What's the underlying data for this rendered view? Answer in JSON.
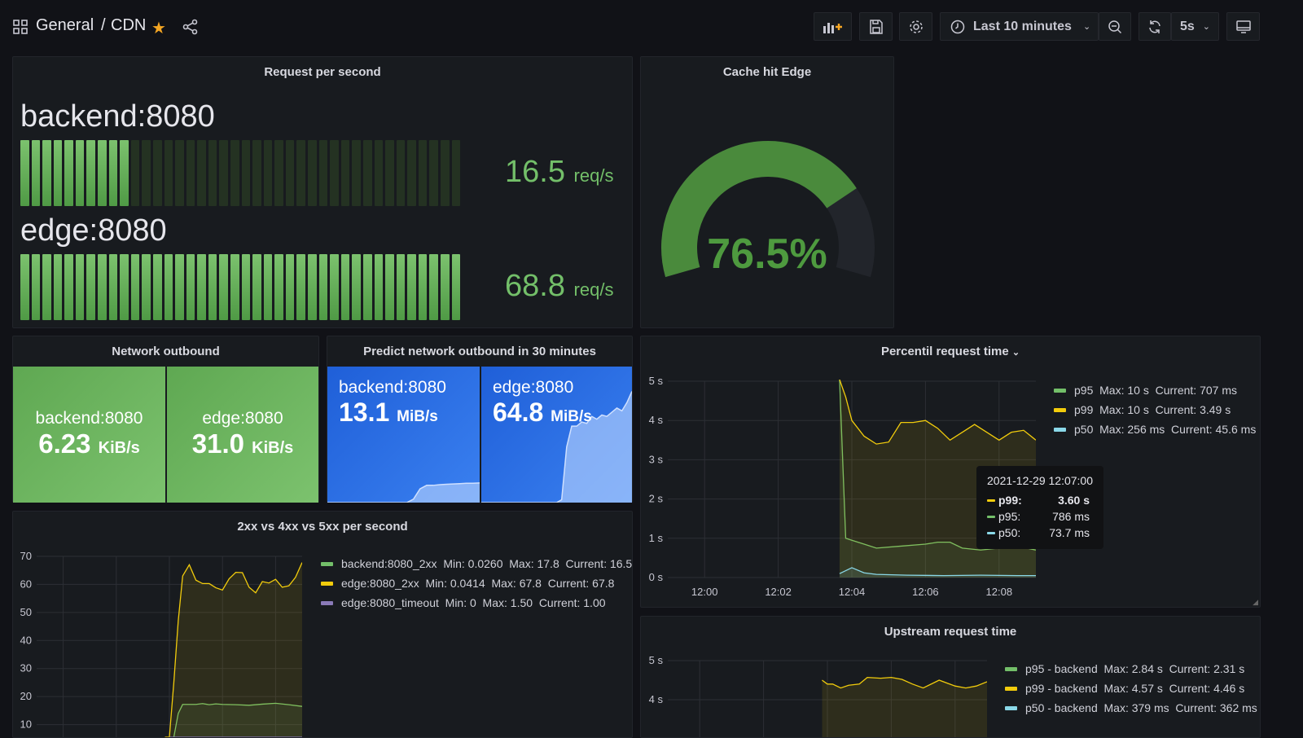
{
  "header": {
    "breadcrumb_root": "General",
    "breadcrumb_sep": "/",
    "breadcrumb_page": "CDN",
    "time_range": "Last 10 minutes",
    "refresh_interval": "5s",
    "icons": [
      "apps-icon",
      "star-icon",
      "share-icon",
      "add-panel-icon",
      "save-icon",
      "settings-icon",
      "clock-icon",
      "zoom-out-icon",
      "refresh-icon",
      "tv-mode-icon"
    ]
  },
  "colors": {
    "green": "#73bf69",
    "yellow": "#f2cc0c",
    "light_yellow": "#e0b94c",
    "cyan": "#8ad8e8",
    "purple": "#8a7ab8",
    "blue": "#3274d9",
    "star": "#f5a623"
  },
  "rps": {
    "title": "Request per second",
    "items": [
      {
        "name": "backend:8080",
        "value": "16.5",
        "unit": "req/s",
        "level": 16.5
      },
      {
        "name": "edge:8080",
        "value": "68.8",
        "unit": "req/s",
        "level": 68.8
      }
    ]
  },
  "cache": {
    "title": "Cache hit Edge",
    "value": "76.5%",
    "percent": 76.5
  },
  "network": {
    "title": "Network outbound",
    "items": [
      {
        "name": "backend:8080",
        "value": "6.23",
        "unit": "KiB/s"
      },
      {
        "name": "edge:8080",
        "value": "31.0",
        "unit": "KiB/s"
      }
    ]
  },
  "predict": {
    "title": "Predict network outbound in 30 minutes",
    "items": [
      {
        "name": "backend:8080",
        "value": "13.1",
        "unit": "MiB/s",
        "sparkline": [
          0,
          0,
          0,
          0,
          0,
          0,
          0,
          0,
          0,
          0,
          0,
          0,
          0,
          1,
          4,
          5,
          5,
          5.2,
          5.3,
          5.4,
          5.5,
          5.6,
          5.6,
          5.7
        ]
      },
      {
        "name": "edge:8080",
        "value": "64.8",
        "unit": "MiB/s",
        "sparkline": [
          0,
          0,
          0,
          0,
          0,
          0,
          0,
          0,
          0,
          0,
          0,
          0,
          0,
          0,
          0,
          0,
          2,
          40,
          55,
          55,
          58,
          57,
          62,
          60,
          63,
          62,
          65,
          68,
          66,
          72,
          80
        ]
      }
    ]
  },
  "chart_data": [
    {
      "type": "line",
      "title": "Percentil request time",
      "has_menu": true,
      "ylim": [
        0,
        5
      ],
      "yticks": [
        "0 s",
        "1 s",
        "2 s",
        "3 s",
        "4 s",
        "5 s"
      ],
      "xlim": [
        "11:59:00",
        "12:09:00"
      ],
      "xticks": [
        "12:00",
        "12:02",
        "12:04",
        "12:06",
        "12:08"
      ],
      "grid": true,
      "legend": "right",
      "series": [
        {
          "name": "p95",
          "legend": "p95  Max: 10 s  Current: 707 ms",
          "color": "#73bf69",
          "x": [
            "12:03:40",
            "12:03:50",
            "12:04:00",
            "12:04:20",
            "12:04:40",
            "12:05:20",
            "12:06:00",
            "12:06:20",
            "12:06:40",
            "12:07:00",
            "12:07:30",
            "12:08:00",
            "12:08:30",
            "12:09:00"
          ],
          "y": [
            10,
            1.0,
            0.95,
            0.85,
            0.75,
            0.8,
            0.85,
            0.9,
            0.9,
            0.75,
            0.7,
            0.75,
            0.8,
            0.7
          ]
        },
        {
          "name": "p99",
          "legend": "p99  Max: 10 s  Current: 3.49 s",
          "color": "#f2cc0c",
          "x": [
            "12:03:40",
            "12:03:50",
            "12:04:00",
            "12:04:20",
            "12:04:40",
            "12:05:00",
            "12:05:20",
            "12:05:40",
            "12:06:00",
            "12:06:20",
            "12:06:40",
            "12:07:00",
            "12:07:20",
            "12:07:40",
            "12:08:00",
            "12:08:20",
            "12:08:40",
            "12:09:00"
          ],
          "y": [
            10,
            4.6,
            4.0,
            3.6,
            3.4,
            3.45,
            3.95,
            3.95,
            4.0,
            3.8,
            3.5,
            3.7,
            3.9,
            3.7,
            3.5,
            3.7,
            3.75,
            3.5
          ]
        },
        {
          "name": "p50",
          "legend": "p50  Max: 256 ms  Current: 45.6 ms",
          "color": "#8ad8e8",
          "x": [
            "12:03:40",
            "12:04:00",
            "12:04:20",
            "12:04:40",
            "12:05:30",
            "12:06:30",
            "12:07:30",
            "12:08:30",
            "12:09:00"
          ],
          "y": [
            0.1,
            0.25,
            0.12,
            0.08,
            0.06,
            0.05,
            0.06,
            0.05,
            0.05
          ]
        }
      ],
      "tooltip": {
        "time": "2021-12-29 12:07:00",
        "rows": [
          {
            "name": "p99:",
            "value": "3.60 s",
            "color": "#f2cc0c"
          },
          {
            "name": "p95:",
            "value": "786 ms",
            "color": "#73bf69"
          },
          {
            "name": "p50:",
            "value": "73.7 ms",
            "color": "#8ad8e8"
          }
        ]
      }
    },
    {
      "type": "line",
      "title": "2xx vs 4xx vs 5xx per second",
      "ylim": [
        0,
        70
      ],
      "yticks": [
        "10",
        "20",
        "30",
        "40",
        "50",
        "60",
        "70"
      ],
      "xlim": [
        "11:59:00",
        "12:09:00"
      ],
      "grid": true,
      "legend": "right",
      "series": [
        {
          "name": "backend:8080_2xx",
          "legend": "backend:8080_2xx  Min: 0.0260  Max: 17.8  Current: 16.5",
          "color": "#73bf69",
          "x": [
            "12:04:10",
            "12:04:20",
            "12:04:30",
            "12:05:00",
            "12:05:15",
            "12:05:30",
            "12:05:45",
            "12:06:00",
            "12:06:30",
            "12:07:00",
            "12:07:30",
            "12:08:00",
            "12:08:30",
            "12:09:00"
          ],
          "y": [
            0,
            14,
            17.2,
            17.2,
            17.5,
            17.1,
            17.4,
            17.2,
            17.1,
            16.9,
            17.3,
            17.6,
            17.1,
            16.5
          ]
        },
        {
          "name": "edge:8080_2xx",
          "legend": "edge:8080_2xx  Min: 0.0414  Max: 67.8  Current: 67.8",
          "color": "#f2cc0c",
          "x": [
            "12:03:50",
            "12:04:00",
            "12:04:10",
            "12:04:20",
            "12:04:30",
            "12:04:45",
            "12:05:00",
            "12:05:15",
            "12:05:30",
            "12:05:45",
            "12:06:00",
            "12:06:15",
            "12:06:30",
            "12:06:45",
            "12:07:00",
            "12:07:15",
            "12:07:30",
            "12:07:45",
            "12:08:00",
            "12:08:15",
            "12:08:30",
            "12:08:45",
            "12:09:00"
          ],
          "y": [
            0,
            5,
            25,
            47,
            63,
            67,
            61.5,
            60.3,
            60.3,
            58.8,
            58,
            62,
            64.3,
            64.2,
            59,
            57,
            61,
            60.5,
            61.8,
            59,
            59.5,
            62.5,
            67.8
          ]
        },
        {
          "name": "edge:8080_timeout",
          "legend": "edge:8080_timeout  Min: 0  Max: 1.50  Current: 1.00",
          "color": "#8a7ab8",
          "x": [
            "12:04:00",
            "12:09:00"
          ],
          "y": [
            1,
            1
          ]
        }
      ]
    },
    {
      "type": "line",
      "title": "Upstream request time",
      "ylim": [
        0,
        5
      ],
      "yticks": [
        "4 s",
        "5 s"
      ],
      "xlim": [
        "11:59:00",
        "12:09:00"
      ],
      "grid": true,
      "legend": "right",
      "series": [
        {
          "name": "p95 - backend",
          "legend": "p95 - backend  Max: 2.84 s  Current: 2.31 s",
          "color": "#73bf69",
          "x": [],
          "y": []
        },
        {
          "name": "p99 - backend",
          "legend": "p99 - backend  Max: 4.57 s  Current: 4.46 s",
          "color": "#f2cc0c",
          "x": [
            "12:03:50",
            "12:04:00",
            "12:04:10",
            "12:04:25",
            "12:04:40",
            "12:05:00",
            "12:05:15",
            "12:05:40",
            "12:06:00",
            "12:06:20",
            "12:06:40",
            "12:07:00",
            "12:07:30",
            "12:08:00",
            "12:08:20",
            "12:08:40",
            "12:09:00"
          ],
          "y": [
            4.5,
            4.4,
            4.4,
            4.3,
            4.37,
            4.4,
            4.57,
            4.55,
            4.57,
            4.52,
            4.4,
            4.3,
            4.5,
            4.35,
            4.3,
            4.35,
            4.46
          ]
        },
        {
          "name": "p50 - backend",
          "legend": "p50 - backend  Max: 379 ms  Current: 362 ms",
          "color": "#8ad8e8",
          "x": [],
          "y": []
        }
      ]
    }
  ]
}
